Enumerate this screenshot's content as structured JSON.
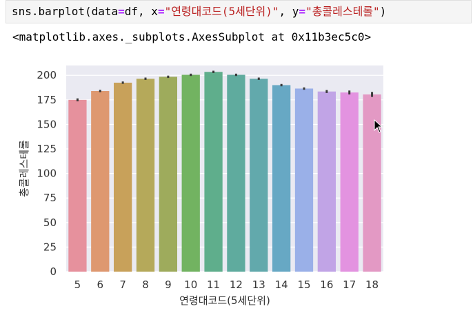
{
  "code_cell": {
    "prefix": "sns.barplot(data",
    "eq1": "=",
    "df_part": "df, x",
    "eq2": "=",
    "x_str": "\"연령대코드(5세단위)\"",
    "mid": ", y",
    "eq3": "=",
    "y_str": "\"총콜레스테롤\"",
    "suffix": ")"
  },
  "output": {
    "text": "<matplotlib.axes._subplots.AxesSubplot at 0x11b3ec5c0>"
  },
  "chart_data": {
    "type": "bar",
    "xlabel": "연령대코드(5세단위)",
    "ylabel": "총콜레스테롤",
    "categories": [
      "5",
      "6",
      "7",
      "8",
      "9",
      "10",
      "11",
      "12",
      "13",
      "14",
      "15",
      "16",
      "17",
      "18"
    ],
    "values": [
      175,
      184,
      192.5,
      196.5,
      198.5,
      200.5,
      203.5,
      200.5,
      196.5,
      190,
      186.5,
      183.5,
      182.5,
      180.5
    ],
    "errors": [
      1.5,
      1.2,
      1.2,
      1.2,
      1.2,
      1.2,
      1.2,
      1.2,
      1.2,
      1.2,
      1.2,
      1.5,
      2,
      2.5
    ],
    "colors": [
      "#e6919d",
      "#de9870",
      "#c8a15a",
      "#b5a95a",
      "#9eab5c",
      "#72b361",
      "#5fae8c",
      "#5fab9e",
      "#62a9ac",
      "#67a8c4",
      "#9ab0e8",
      "#c1a4e6",
      "#e393e0",
      "#e399c4"
    ],
    "yticks": [
      "0",
      "25",
      "50",
      "75",
      "100",
      "125",
      "150",
      "175",
      "200"
    ],
    "ylim": [
      0,
      210
    ],
    "grid": true,
    "background": "#eaeaf2"
  }
}
